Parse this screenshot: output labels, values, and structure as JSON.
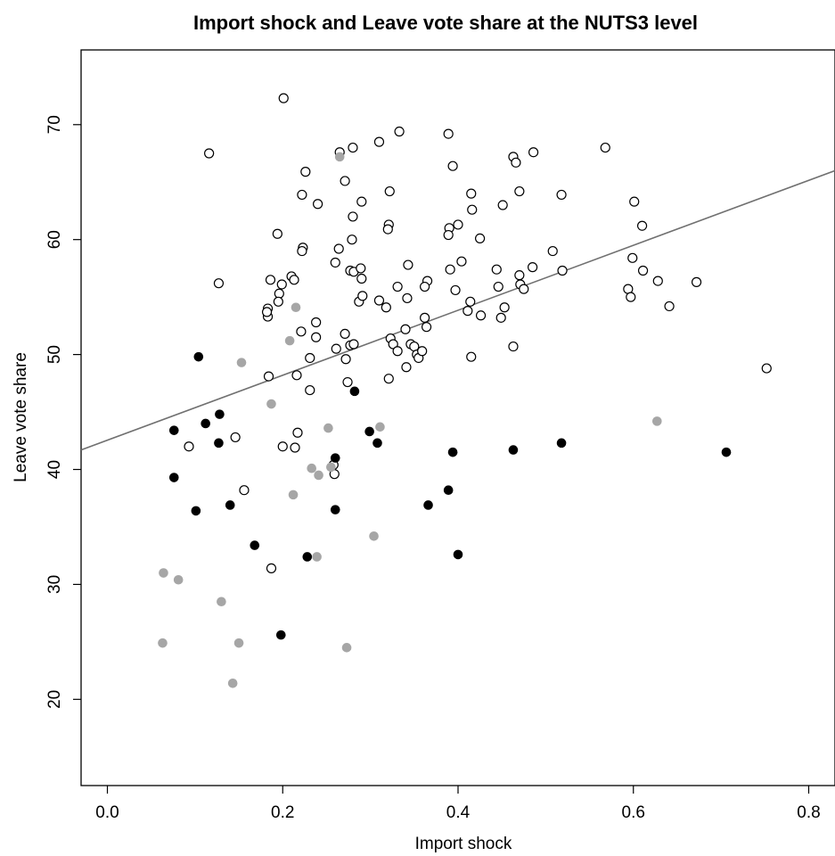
{
  "chart_data": {
    "type": "scatter",
    "title": "Import shock and Leave vote share at the NUTS3 level",
    "xlabel": "Import shock",
    "ylabel": "Leave vote share",
    "xlim": [
      -0.03,
      0.83
    ],
    "ylim": [
      12.5,
      76.5
    ],
    "xticks": [
      0.0,
      0.2,
      0.4,
      0.6,
      0.8
    ],
    "xtick_labels": [
      "0.0",
      "0.2",
      "0.4",
      "0.6",
      "0.8"
    ],
    "yticks": [
      20,
      30,
      40,
      50,
      60,
      70
    ],
    "ytick_labels": [
      "20",
      "30",
      "40",
      "50",
      "60",
      "70"
    ],
    "grid": false,
    "legend": "none",
    "colors": {
      "open": "#000000",
      "filled": "#000000",
      "gray": "#a6a6a6",
      "fit_line": "#707070"
    },
    "fit_line": {
      "x": [
        -0.03,
        0.83
      ],
      "y": [
        41.7,
        66.0
      ]
    },
    "series": [
      {
        "marker": "open-circle",
        "points": [
          [
            0.201,
            72.3
          ],
          [
            0.116,
            67.5
          ],
          [
            0.265,
            67.6
          ],
          [
            0.28,
            68.0
          ],
          [
            0.31,
            68.5
          ],
          [
            0.333,
            69.4
          ],
          [
            0.389,
            69.2
          ],
          [
            0.463,
            67.2
          ],
          [
            0.486,
            67.6
          ],
          [
            0.568,
            68.0
          ],
          [
            0.466,
            66.7
          ],
          [
            0.394,
            66.4
          ],
          [
            0.226,
            65.9
          ],
          [
            0.271,
            65.1
          ],
          [
            0.222,
            63.9
          ],
          [
            0.24,
            63.1
          ],
          [
            0.29,
            63.3
          ],
          [
            0.322,
            64.2
          ],
          [
            0.415,
            64.0
          ],
          [
            0.47,
            64.2
          ],
          [
            0.518,
            63.9
          ],
          [
            0.451,
            63.0
          ],
          [
            0.416,
            62.6
          ],
          [
            0.601,
            63.3
          ],
          [
            0.28,
            62.0
          ],
          [
            0.321,
            61.3
          ],
          [
            0.32,
            60.9
          ],
          [
            0.39,
            61.0
          ],
          [
            0.4,
            61.3
          ],
          [
            0.389,
            60.4
          ],
          [
            0.425,
            60.1
          ],
          [
            0.61,
            61.2
          ],
          [
            0.194,
            60.5
          ],
          [
            0.223,
            59.3
          ],
          [
            0.222,
            59.0
          ],
          [
            0.264,
            59.2
          ],
          [
            0.279,
            60.0
          ],
          [
            0.26,
            58.0
          ],
          [
            0.277,
            57.3
          ],
          [
            0.281,
            57.2
          ],
          [
            0.289,
            57.5
          ],
          [
            0.29,
            56.6
          ],
          [
            0.343,
            57.8
          ],
          [
            0.365,
            56.4
          ],
          [
            0.362,
            55.9
          ],
          [
            0.391,
            57.4
          ],
          [
            0.404,
            58.1
          ],
          [
            0.444,
            57.4
          ],
          [
            0.47,
            56.9
          ],
          [
            0.485,
            57.6
          ],
          [
            0.508,
            59.0
          ],
          [
            0.519,
            57.3
          ],
          [
            0.599,
            58.4
          ],
          [
            0.611,
            57.3
          ],
          [
            0.127,
            56.2
          ],
          [
            0.186,
            56.5
          ],
          [
            0.199,
            56.1
          ],
          [
            0.21,
            56.8
          ],
          [
            0.213,
            56.5
          ],
          [
            0.196,
            55.3
          ],
          [
            0.195,
            54.6
          ],
          [
            0.183,
            54.0
          ],
          [
            0.183,
            53.3
          ],
          [
            0.182,
            53.7
          ],
          [
            0.221,
            52.0
          ],
          [
            0.238,
            51.5
          ],
          [
            0.238,
            52.8
          ],
          [
            0.287,
            54.6
          ],
          [
            0.291,
            55.1
          ],
          [
            0.31,
            54.7
          ],
          [
            0.318,
            54.1
          ],
          [
            0.331,
            55.9
          ],
          [
            0.342,
            54.9
          ],
          [
            0.362,
            53.2
          ],
          [
            0.364,
            52.4
          ],
          [
            0.397,
            55.6
          ],
          [
            0.411,
            53.8
          ],
          [
            0.414,
            54.6
          ],
          [
            0.426,
            53.4
          ],
          [
            0.449,
            53.2
          ],
          [
            0.446,
            55.9
          ],
          [
            0.453,
            54.1
          ],
          [
            0.471,
            56.1
          ],
          [
            0.475,
            55.7
          ],
          [
            0.594,
            55.7
          ],
          [
            0.597,
            55.0
          ],
          [
            0.628,
            56.4
          ],
          [
            0.641,
            54.2
          ],
          [
            0.672,
            56.3
          ],
          [
            0.271,
            51.8
          ],
          [
            0.277,
            50.8
          ],
          [
            0.281,
            50.9
          ],
          [
            0.261,
            50.5
          ],
          [
            0.323,
            51.4
          ],
          [
            0.326,
            50.9
          ],
          [
            0.331,
            50.3
          ],
          [
            0.34,
            52.2
          ],
          [
            0.346,
            50.9
          ],
          [
            0.35,
            50.7
          ],
          [
            0.353,
            50.0
          ],
          [
            0.355,
            49.7
          ],
          [
            0.359,
            50.3
          ],
          [
            0.272,
            49.6
          ],
          [
            0.231,
            49.7
          ],
          [
            0.216,
            48.2
          ],
          [
            0.184,
            48.1
          ],
          [
            0.231,
            46.9
          ],
          [
            0.274,
            47.6
          ],
          [
            0.321,
            47.9
          ],
          [
            0.341,
            48.9
          ],
          [
            0.415,
            49.8
          ],
          [
            0.463,
            50.7
          ],
          [
            0.752,
            48.8
          ],
          [
            0.146,
            42.8
          ],
          [
            0.093,
            42.0
          ],
          [
            0.2,
            42.0
          ],
          [
            0.214,
            41.9
          ],
          [
            0.217,
            43.2
          ],
          [
            0.258,
            40.4
          ],
          [
            0.259,
            39.6
          ],
          [
            0.156,
            38.2
          ],
          [
            0.187,
            31.4
          ]
        ]
      },
      {
        "marker": "filled-circle",
        "points": [
          [
            0.104,
            49.8
          ],
          [
            0.282,
            46.8
          ],
          [
            0.076,
            43.4
          ],
          [
            0.112,
            44.0
          ],
          [
            0.128,
            44.8
          ],
          [
            0.127,
            42.3
          ],
          [
            0.299,
            43.3
          ],
          [
            0.308,
            42.3
          ],
          [
            0.076,
            39.3
          ],
          [
            0.26,
            41.0
          ],
          [
            0.394,
            41.5
          ],
          [
            0.463,
            41.7
          ],
          [
            0.518,
            42.3
          ],
          [
            0.706,
            41.5
          ],
          [
            0.101,
            36.4
          ],
          [
            0.14,
            36.9
          ],
          [
            0.26,
            36.5
          ],
          [
            0.366,
            36.9
          ],
          [
            0.389,
            38.2
          ],
          [
            0.168,
            33.4
          ],
          [
            0.228,
            32.4
          ],
          [
            0.4,
            32.6
          ],
          [
            0.198,
            25.6
          ]
        ]
      },
      {
        "marker": "gray-circle",
        "points": [
          [
            0.265,
            67.2
          ],
          [
            0.215,
            54.1
          ],
          [
            0.208,
            51.2
          ],
          [
            0.153,
            49.3
          ],
          [
            0.187,
            45.7
          ],
          [
            0.252,
            43.6
          ],
          [
            0.311,
            43.7
          ],
          [
            0.627,
            44.2
          ],
          [
            0.233,
            40.1
          ],
          [
            0.241,
            39.5
          ],
          [
            0.255,
            40.2
          ],
          [
            0.212,
            37.8
          ],
          [
            0.239,
            32.4
          ],
          [
            0.304,
            34.2
          ],
          [
            0.064,
            31.0
          ],
          [
            0.081,
            30.4
          ],
          [
            0.13,
            28.5
          ],
          [
            0.063,
            24.9
          ],
          [
            0.15,
            24.9
          ],
          [
            0.273,
            24.5
          ],
          [
            0.143,
            21.4
          ]
        ]
      }
    ]
  }
}
